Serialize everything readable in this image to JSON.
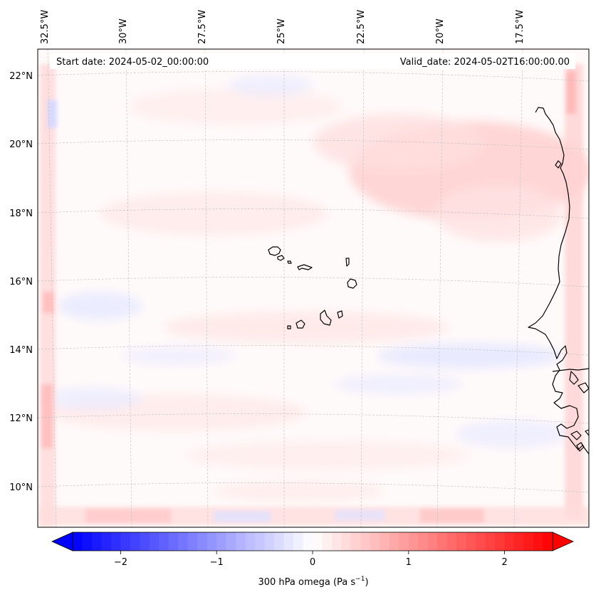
{
  "map": {
    "region": "Eastern tropical Atlantic — Cape Verde Islands and West African coast",
    "start_date_label": "Start date: 2024-05-02_00:00:00",
    "valid_date_label": "Valid_date: 2024-05-02T16:00:00.00",
    "lon_labels": [
      "32.5°W",
      "30°W",
      "27.5°W",
      "25°W",
      "22.5°W",
      "20°W",
      "17.5°W"
    ],
    "lat_labels": [
      "22°N",
      "20°N",
      "18°N",
      "16°N",
      "14°N",
      "12°N",
      "10°N"
    ],
    "field": "300 hPa omega",
    "colormap": "bwr",
    "colors": {
      "negative": "#0000ff",
      "zero": "#ffffff",
      "positive": "#ff0000",
      "coastline": "#000000",
      "grid": "#bfbfbf"
    }
  },
  "colorbar": {
    "label_prefix": "300 hPa omega (Pa s",
    "label_exponent": "−1",
    "label_suffix": ")",
    "ticks": [
      "−2",
      "−1",
      "0",
      "1",
      "2"
    ],
    "tick_values": [
      -2,
      -1,
      0,
      1,
      2
    ],
    "min": -2.5,
    "max": 2.5,
    "extend": "both"
  }
}
